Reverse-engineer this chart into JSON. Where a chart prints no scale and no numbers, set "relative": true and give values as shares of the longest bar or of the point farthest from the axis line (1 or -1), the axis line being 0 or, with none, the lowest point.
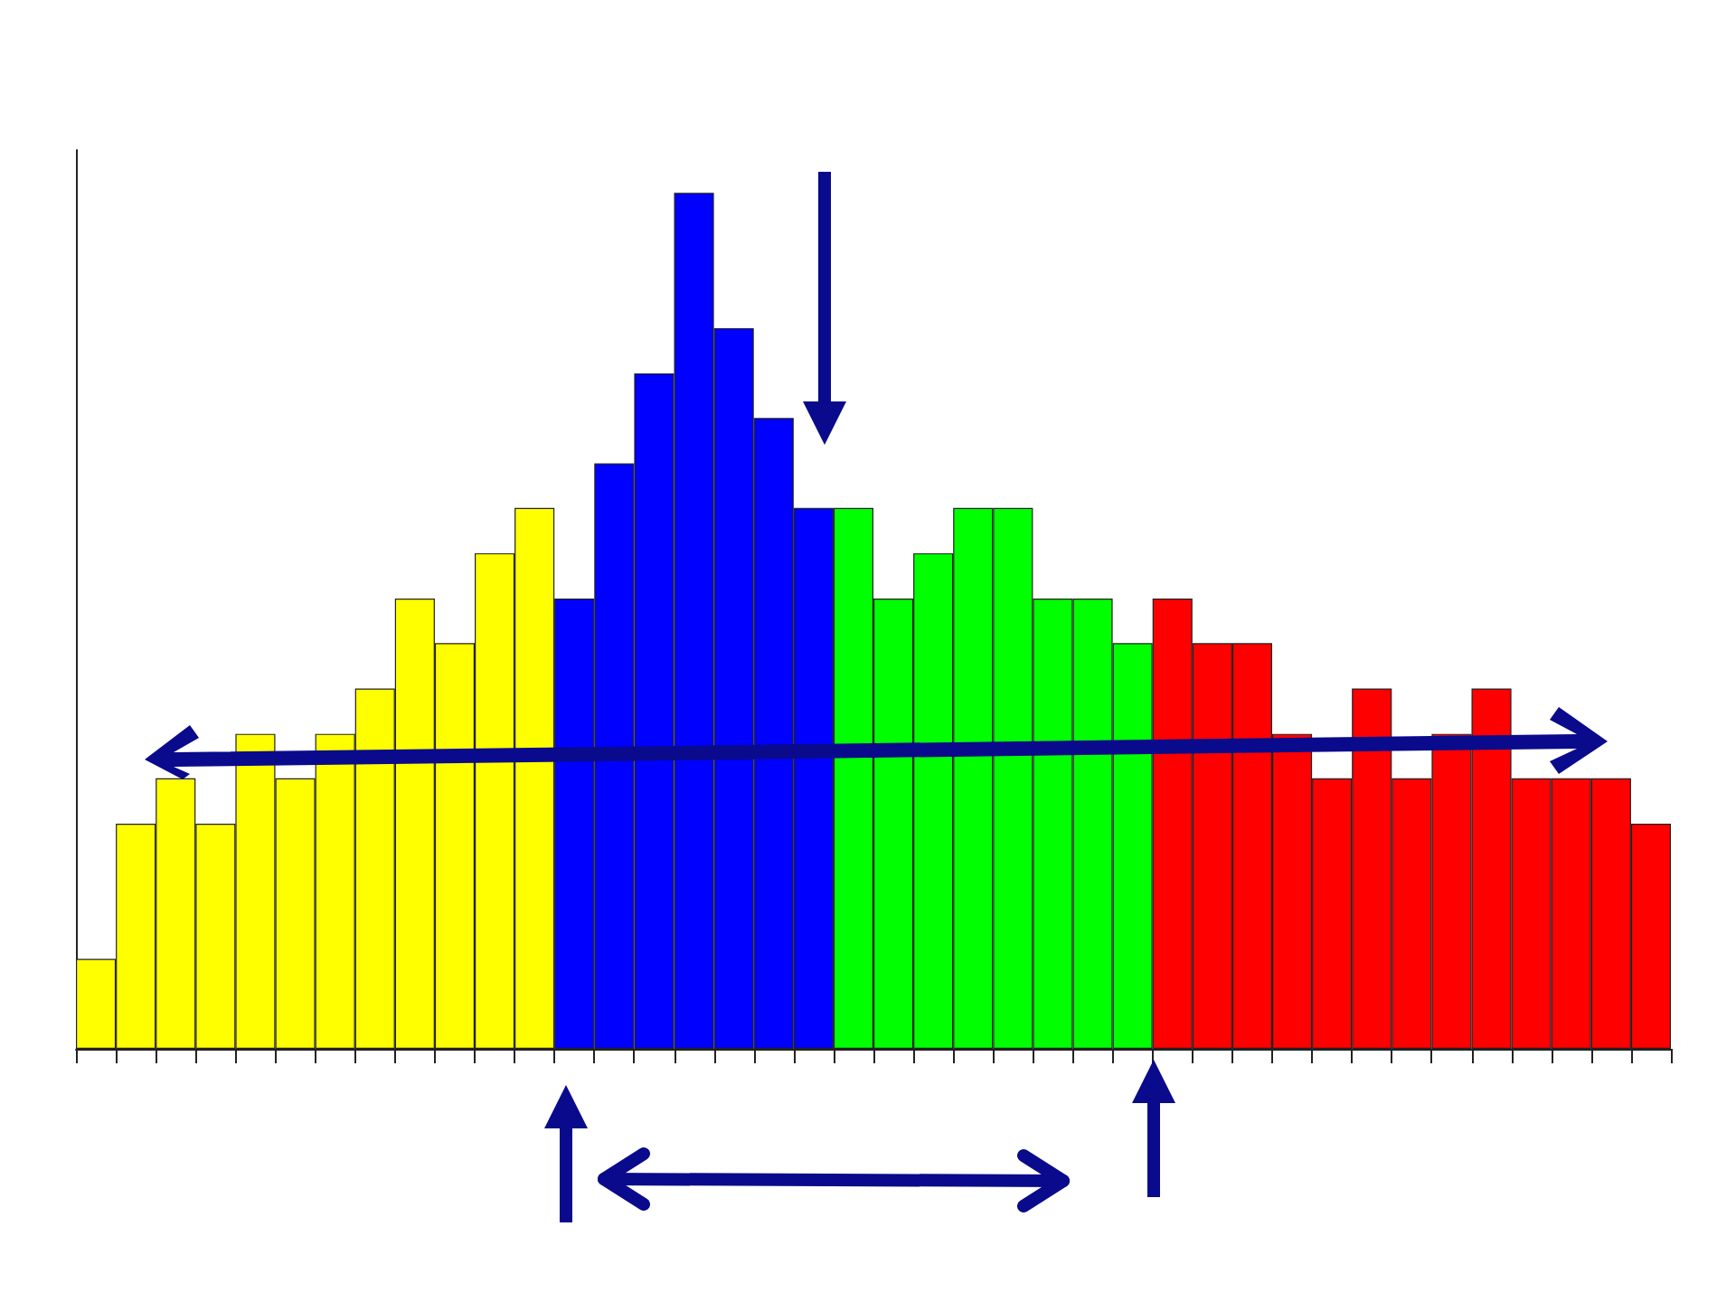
{
  "chart_data": {
    "type": "bar",
    "relative": true,
    "categories": [
      null,
      null,
      null,
      null,
      null,
      null,
      null,
      null,
      null,
      null,
      null,
      null,
      null,
      null,
      null,
      null,
      null,
      null,
      null,
      null,
      null,
      null,
      null,
      null,
      null,
      null,
      null,
      null,
      null,
      null,
      null,
      null,
      null,
      null,
      null,
      null,
      null,
      null,
      null,
      null
    ],
    "values": [
      0.105,
      0.263,
      0.316,
      0.263,
      0.368,
      0.316,
      0.368,
      0.421,
      0.526,
      0.474,
      0.579,
      0.632,
      0.526,
      0.684,
      0.789,
      1,
      0.842,
      0.737,
      0.632,
      0.632,
      0.526,
      0.579,
      0.632,
      0.632,
      0.526,
      0.526,
      0.474,
      0.526,
      0.474,
      0.474,
      0.368,
      0.316,
      0.421,
      0.316,
      0.368,
      0.421,
      0.316,
      0.316,
      0.316,
      0.263
    ],
    "colors": [
      "#ffff00",
      "#ffff00",
      "#ffff00",
      "#ffff00",
      "#ffff00",
      "#ffff00",
      "#ffff00",
      "#ffff00",
      "#ffff00",
      "#ffff00",
      "#ffff00",
      "#ffff00",
      "#0000ff",
      "#0000ff",
      "#0000ff",
      "#0000ff",
      "#0000ff",
      "#0000ff",
      "#0000ff",
      "#00ff00",
      "#00ff00",
      "#00ff00",
      "#00ff00",
      "#00ff00",
      "#00ff00",
      "#00ff00",
      "#00ff00",
      "#ff0000",
      "#ff0000",
      "#ff0000",
      "#ff0000",
      "#ff0000",
      "#ff0000",
      "#ff0000",
      "#ff0000",
      "#ff0000",
      "#ff0000",
      "#ff0000",
      "#ff0000",
      "#ff0000"
    ],
    "grid": false
  }
}
